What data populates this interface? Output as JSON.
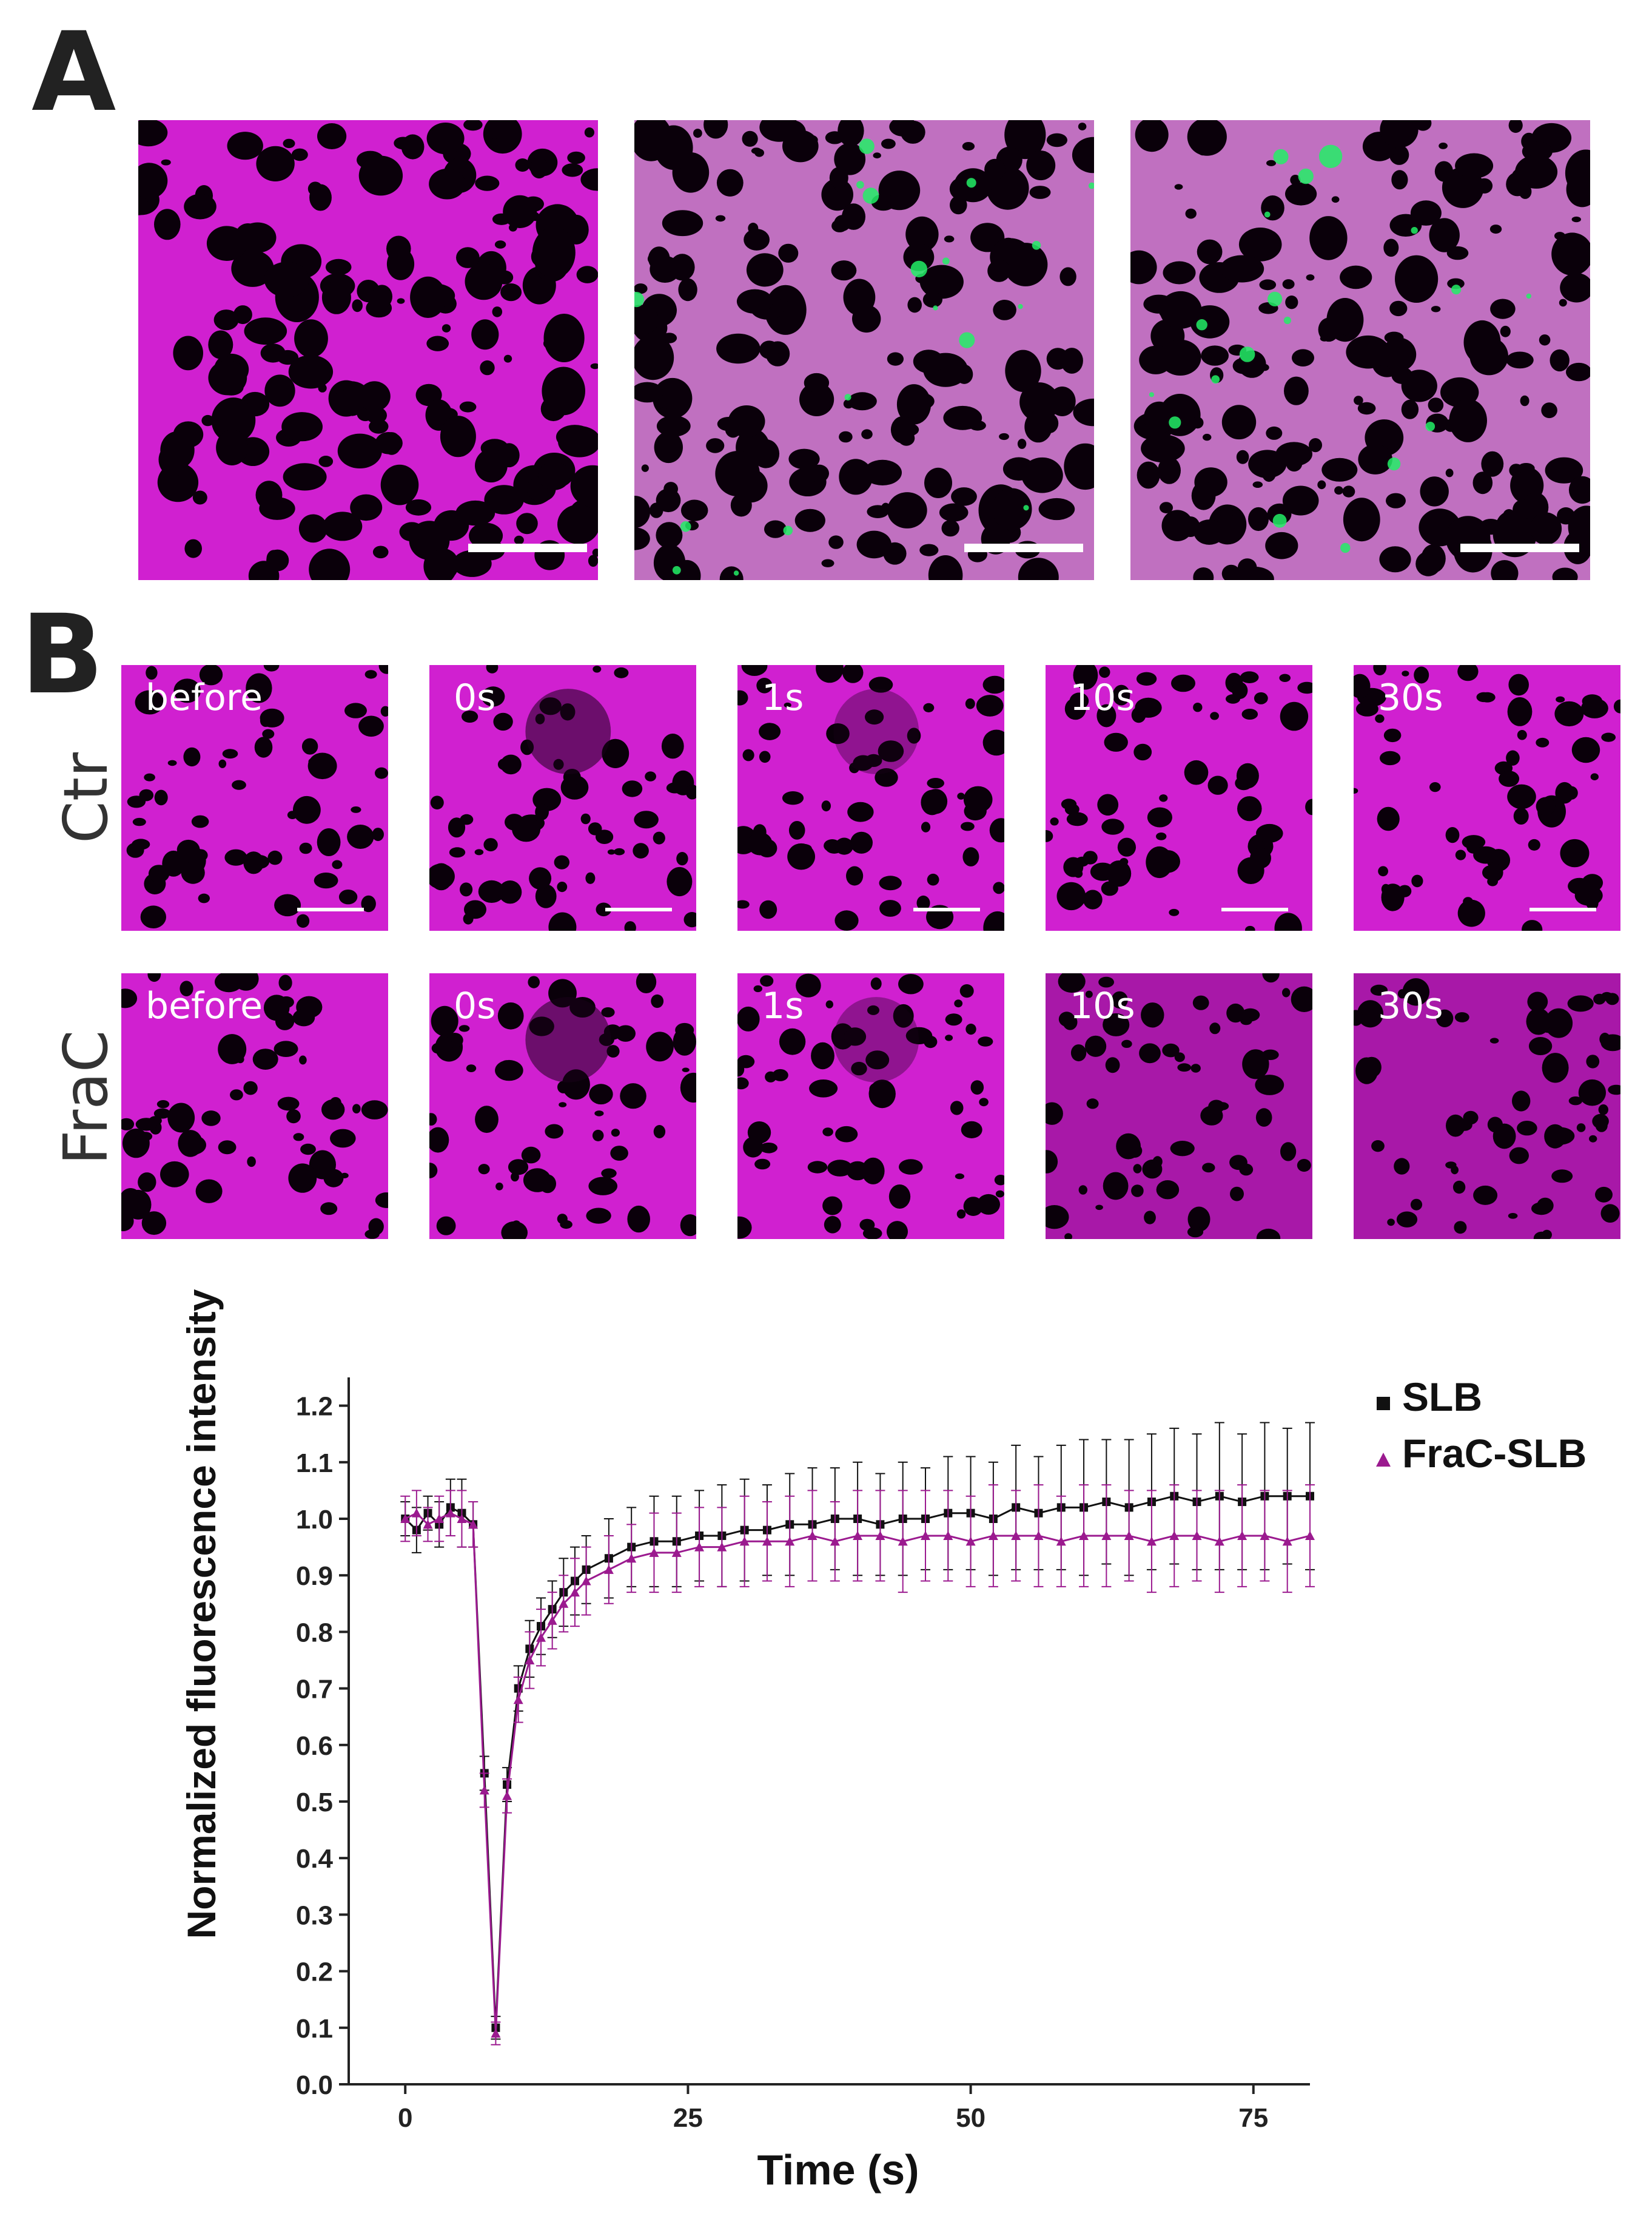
{
  "panels": {
    "a": {
      "letter": "A"
    },
    "b": {
      "letter": "B",
      "time_labels": [
        "before",
        "0s",
        "1s",
        "10s",
        "30s"
      ],
      "rows": [
        {
          "label": "Ctr"
        },
        {
          "label": "FraC"
        }
      ]
    }
  },
  "colors": {
    "membrane": "#d020d0",
    "frac_green": "#22ee66",
    "slb_series": "#111111",
    "frac_series": "#9b1a8f"
  },
  "chart_data": {
    "type": "scatter",
    "xlabel": "Time (s)",
    "ylabel": "Normalized fluorescence intensity",
    "xlim": [
      -5,
      80
    ],
    "ylim": [
      0,
      1.25
    ],
    "xticks": [
      0,
      25,
      50,
      75
    ],
    "yticks": [
      0.0,
      0.1,
      0.2,
      0.3,
      0.4,
      0.5,
      0.6,
      0.7,
      0.8,
      0.9,
      1.0,
      1.1,
      1.2
    ],
    "legend_position": "top-right",
    "series": [
      {
        "name": "SLB",
        "marker": "square",
        "x": [
          0,
          1,
          2,
          3,
          4,
          5,
          6,
          7,
          8,
          9,
          10,
          11,
          12,
          13,
          14,
          15,
          16,
          18,
          20,
          22,
          24,
          26,
          28,
          30,
          32,
          34,
          36,
          38,
          40,
          42,
          44,
          46,
          48,
          50,
          52,
          54,
          56,
          58,
          60,
          62,
          64,
          66,
          68,
          70,
          72,
          74,
          76,
          78,
          80
        ],
        "y": [
          1.0,
          0.98,
          1.01,
          0.99,
          1.02,
          1.01,
          0.99,
          0.55,
          0.1,
          0.53,
          0.7,
          0.77,
          0.81,
          0.84,
          0.87,
          0.89,
          0.91,
          0.93,
          0.95,
          0.96,
          0.96,
          0.97,
          0.97,
          0.98,
          0.98,
          0.99,
          0.99,
          1.0,
          1.0,
          0.99,
          1.0,
          1.0,
          1.01,
          1.01,
          1.0,
          1.02,
          1.01,
          1.02,
          1.02,
          1.03,
          1.02,
          1.03,
          1.04,
          1.03,
          1.04,
          1.03,
          1.04,
          1.04,
          1.04
        ],
        "err": [
          0.03,
          0.04,
          0.03,
          0.04,
          0.05,
          0.06,
          0.04,
          0.03,
          0.02,
          0.03,
          0.04,
          0.05,
          0.05,
          0.05,
          0.06,
          0.06,
          0.06,
          0.07,
          0.07,
          0.08,
          0.08,
          0.08,
          0.09,
          0.09,
          0.08,
          0.09,
          0.1,
          0.09,
          0.1,
          0.09,
          0.1,
          0.09,
          0.1,
          0.1,
          0.1,
          0.11,
          0.1,
          0.11,
          0.12,
          0.11,
          0.12,
          0.12,
          0.12,
          0.12,
          0.13,
          0.12,
          0.13,
          0.12,
          0.13
        ]
      },
      {
        "name": "FraC-SLB",
        "marker": "triangle",
        "x": [
          0,
          1,
          2,
          3,
          4,
          5,
          6,
          7,
          8,
          9,
          10,
          11,
          12,
          13,
          14,
          15,
          16,
          18,
          20,
          22,
          24,
          26,
          28,
          30,
          32,
          34,
          36,
          38,
          40,
          42,
          44,
          46,
          48,
          50,
          52,
          54,
          56,
          58,
          60,
          62,
          64,
          66,
          68,
          70,
          72,
          74,
          76,
          78,
          80
        ],
        "y": [
          1.0,
          1.01,
          0.99,
          1.0,
          1.01,
          1.0,
          0.99,
          0.52,
          0.09,
          0.51,
          0.68,
          0.75,
          0.79,
          0.82,
          0.85,
          0.87,
          0.89,
          0.91,
          0.93,
          0.94,
          0.94,
          0.95,
          0.95,
          0.96,
          0.96,
          0.96,
          0.97,
          0.96,
          0.97,
          0.97,
          0.96,
          0.97,
          0.97,
          0.96,
          0.97,
          0.97,
          0.97,
          0.96,
          0.97,
          0.97,
          0.97,
          0.96,
          0.97,
          0.97,
          0.96,
          0.97,
          0.97,
          0.96,
          0.97
        ],
        "err": [
          0.04,
          0.04,
          0.03,
          0.04,
          0.04,
          0.05,
          0.04,
          0.03,
          0.02,
          0.03,
          0.04,
          0.05,
          0.05,
          0.05,
          0.05,
          0.06,
          0.06,
          0.06,
          0.06,
          0.07,
          0.07,
          0.07,
          0.07,
          0.08,
          0.07,
          0.08,
          0.08,
          0.07,
          0.08,
          0.08,
          0.09,
          0.08,
          0.08,
          0.08,
          0.09,
          0.08,
          0.09,
          0.08,
          0.09,
          0.09,
          0.08,
          0.09,
          0.09,
          0.08,
          0.09,
          0.09,
          0.08,
          0.09,
          0.09
        ]
      }
    ]
  }
}
